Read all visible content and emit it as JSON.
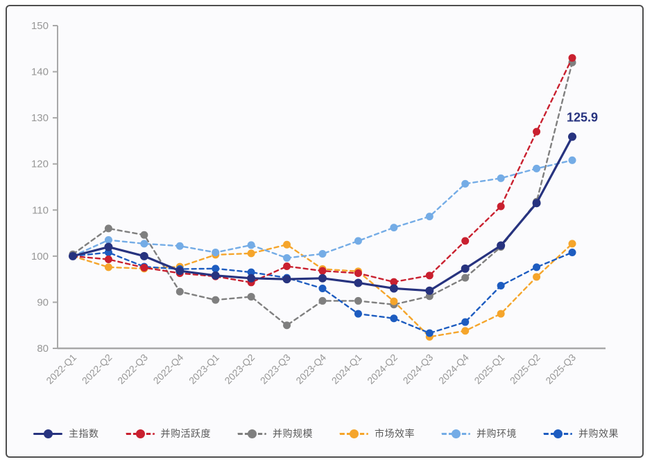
{
  "chart_data": {
    "type": "line",
    "title": "",
    "xlabel": "",
    "ylabel": "",
    "ylim": [
      80,
      150
    ],
    "ytick_step": 10,
    "grid": false,
    "legend_position": "bottom",
    "categories": [
      "2022-Q1",
      "2022-Q2",
      "2022-Q3",
      "2022-Q4",
      "2023-Q1",
      "2023-Q2",
      "2023-Q3",
      "2023-Q4",
      "2024-Q1",
      "2024-Q2",
      "2024-Q3",
      "2024-Q4",
      "2025-Q1",
      "2025-Q2",
      "2025-Q3"
    ],
    "series": [
      {
        "name": "主指数",
        "color": "#27337f",
        "style": "solid",
        "values": [
          100,
          102.0,
          100.0,
          96.8,
          95.8,
          95.2,
          95.0,
          95.2,
          94.2,
          93.0,
          92.5,
          97.3,
          102.3,
          111.5,
          125.9
        ]
      },
      {
        "name": "并购活跃度",
        "color": "#c9202f",
        "style": "dashed",
        "values": [
          100,
          99.3,
          97.5,
          96.3,
          95.6,
          94.3,
          97.8,
          96.8,
          96.3,
          94.4,
          95.8,
          103.3,
          110.8,
          127.0,
          143.0
        ]
      },
      {
        "name": "并购规模",
        "color": "#7f7f7f",
        "style": "dashed",
        "values": [
          100.4,
          106.0,
          104.6,
          92.3,
          90.5,
          91.2,
          85.0,
          90.3,
          90.3,
          89.5,
          91.3,
          95.3,
          102.0,
          111.8,
          142.0
        ]
      },
      {
        "name": "市场效率",
        "color": "#f5a52b",
        "style": "dashed",
        "values": [
          100,
          97.6,
          97.3,
          97.7,
          100.3,
          100.6,
          102.5,
          97.2,
          96.7,
          90.2,
          82.5,
          83.8,
          87.5,
          95.5,
          102.7
        ]
      },
      {
        "name": "并购环境",
        "color": "#74ace6",
        "style": "dashed",
        "values": [
          100,
          103.5,
          102.7,
          102.2,
          100.8,
          102.4,
          99.6,
          100.5,
          103.3,
          106.2,
          108.6,
          115.7,
          116.9,
          119.0,
          120.8
        ]
      },
      {
        "name": "并购效果",
        "color": "#1d5cc0",
        "style": "dashed",
        "values": [
          100,
          100.8,
          97.7,
          97.2,
          97.3,
          96.5,
          95.3,
          93.0,
          87.5,
          86.5,
          83.3,
          85.7,
          93.6,
          97.6,
          100.8
        ]
      }
    ],
    "annotation": {
      "text": "125.9",
      "series": "主指数",
      "category": "2025-Q3",
      "color": "#27337f"
    },
    "axis_color": "#a8a8a8",
    "tick_label_color": "#979797"
  }
}
